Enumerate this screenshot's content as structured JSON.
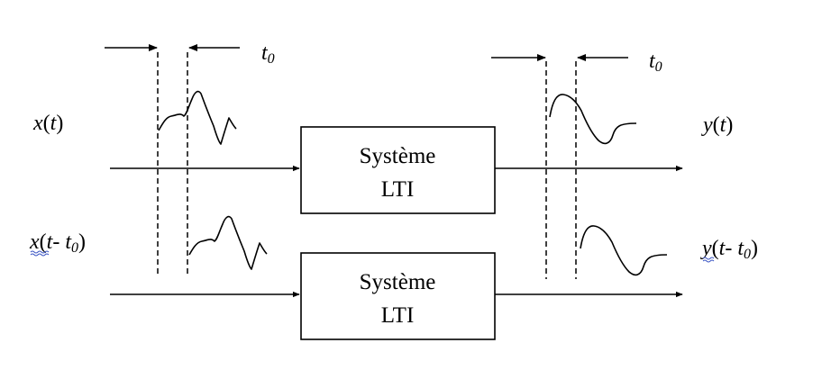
{
  "system": {
    "line1": "Système",
    "line2": "LTI"
  },
  "signals": {
    "input": {
      "name": "x",
      "open": "(",
      "var": "t",
      "close": ")"
    },
    "input_delayed": {
      "name": "x",
      "open": "(",
      "var": "t",
      "minus": "- ",
      "delay": "t",
      "delay_sub": "0",
      "close": ")"
    },
    "output": {
      "name": "y",
      "open": "(",
      "var": "t",
      "close": ")"
    },
    "output_delayed": {
      "name": "y",
      "open": "(",
      "var": "t",
      "minus": "- ",
      "delay": "t",
      "delay_sub": "0",
      "close": ")"
    }
  },
  "delay_marker": {
    "symbol": "t",
    "sub": "0"
  }
}
